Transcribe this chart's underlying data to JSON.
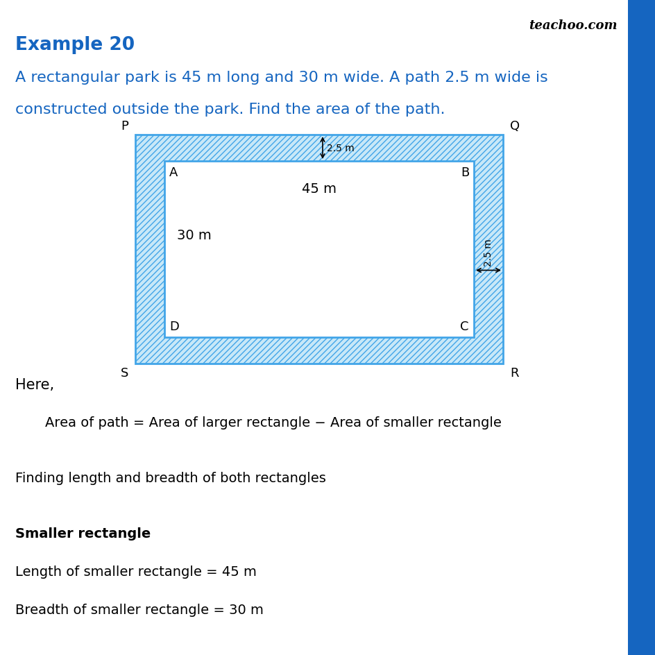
{
  "title": "Example 20",
  "title_color": "#1565c0",
  "watermark": "teachoo.com",
  "problem_line1": "A rectangular park is 45 m long and 30 m wide. A path 2.5 m wide is",
  "problem_line2": "constructed outside the park. Find the area of the path.",
  "problem_color": "#1565c0",
  "hatch_color": "#5bb8e8",
  "rect_border_color": "#42a5e8",
  "outer_fill": "#c8e8f8",
  "inner_fill": "#ffffff",
  "here_text": "Here,",
  "area_formula": "Area of path = Area of larger rectangle − Area of smaller rectangle",
  "finding_text": "Finding length and breadth of both rectangles",
  "smaller_rect_heading": "Smaller rectangle",
  "smaller_length_text": "Length of smaller rectangle = 45 m",
  "smaller_breadth_text": "Breadth of smaller rectangle = 30 m",
  "right_bar_color": "#1565c0",
  "outer_corners": [
    "P",
    "Q",
    "R",
    "S"
  ],
  "inner_corners": [
    "A",
    "B",
    "C",
    "D"
  ],
  "path_label": "2.5 m",
  "length_label": "45 m",
  "breadth_label": "30 m"
}
